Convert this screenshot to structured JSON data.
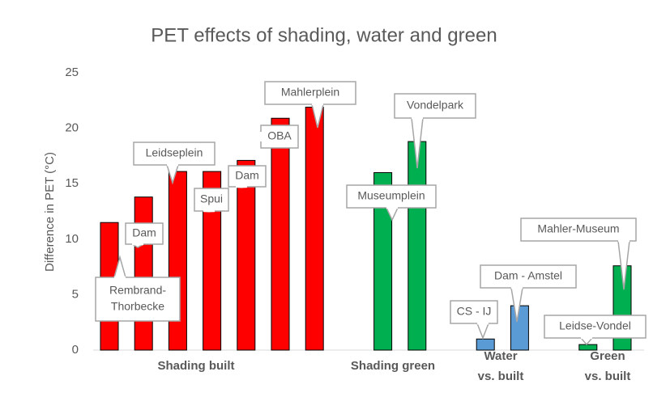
{
  "chart_data": {
    "type": "bar",
    "title": "PET effects of shading, water and green",
    "y_label": "Difference in PET (°C)",
    "categories": [
      null,
      null,
      null,
      null,
      null,
      null,
      null,
      null,
      null,
      null,
      null,
      null,
      null,
      null,
      null,
      null
    ],
    "values": [
      11.5,
      13.8,
      16.1,
      16.1,
      17.1,
      20.9,
      21.9,
      null,
      16.0,
      18.8,
      null,
      1.0,
      4.0,
      null,
      0.5,
      7.6
    ],
    "colors": [
      "#ff0000",
      "#ff0000",
      "#ff0000",
      "#ff0000",
      "#ff0000",
      "#ff0000",
      "#ff0000",
      null,
      "#00b050",
      "#00b050",
      null,
      "#5b9bd5",
      "#5b9bd5",
      null,
      "#00b050",
      "#00b050"
    ],
    "bar_labels": [
      [
        "Rembrand-",
        "Thorbecke"
      ],
      [
        "Dam"
      ],
      [
        "Leidseplein"
      ],
      [
        "Spui"
      ],
      [
        "Dam"
      ],
      [
        "OBA"
      ],
      [
        "Mahlerplein"
      ],
      null,
      [
        "Museumplein"
      ],
      [
        "Vondelpark"
      ],
      null,
      [
        "CS - IJ"
      ],
      [
        "Dam - Amstel"
      ],
      null,
      [
        "Leidse-Vondel"
      ],
      [
        "Mahler-Museum"
      ]
    ],
    "groups": [
      [
        "Shading built"
      ],
      [
        "Shading green"
      ],
      [
        "Water",
        "vs. built"
      ],
      [
        "Green",
        "vs. built"
      ]
    ],
    "ylim": [
      0,
      25
    ],
    "yticks": [
      0,
      5,
      10,
      15,
      20,
      25
    ],
    "grid": false
  }
}
